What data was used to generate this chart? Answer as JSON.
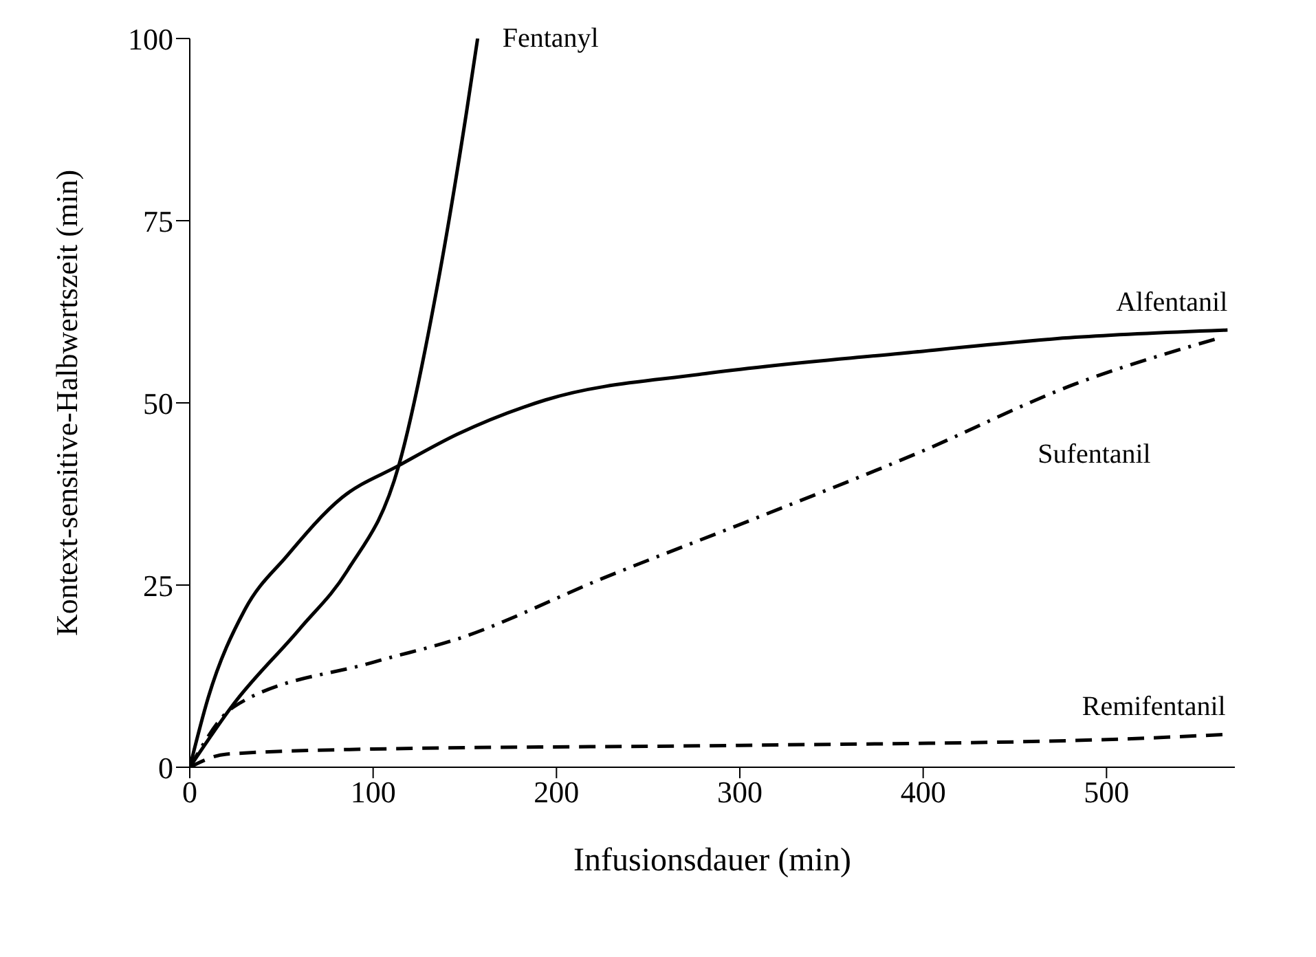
{
  "chart_data": {
    "type": "line",
    "xlabel": "Infusionsdauer (min)",
    "ylabel": "Kontext-sensitive-Halbwertszeit (min)",
    "xlim": [
      0,
      570
    ],
    "ylim": [
      0,
      100
    ],
    "xticks": [
      0,
      100,
      200,
      300,
      400,
      500
    ],
    "yticks": [
      0,
      25,
      50,
      75,
      100
    ],
    "grid": false,
    "legend": false,
    "marker": "none",
    "series": [
      {
        "name": "Fentanyl",
        "color": "#000000",
        "line_style": "solid",
        "x": [
          0,
          24,
          60,
          86,
          114,
          135,
          151,
          157
        ],
        "values": [
          0,
          8.7,
          19,
          27,
          41.4,
          66,
          90,
          100
        ]
      },
      {
        "name": "Alfentanil",
        "color": "#000000",
        "line_style": "solid",
        "x": [
          0,
          10,
          30,
          53,
          83,
          114,
          146,
          194,
          281,
          388,
          483,
          566
        ],
        "values": [
          0,
          9.5,
          21.6,
          29,
          37,
          41.4,
          45.7,
          50.4,
          54,
          56.8,
          59,
          60
        ]
      },
      {
        "name": "Sufentanil",
        "color": "#000000",
        "line_style": "dashdot",
        "x": [
          0,
          24,
          100,
          146,
          226,
          307,
          396,
          483,
          560
        ],
        "values": [
          0,
          8.3,
          14.4,
          17.6,
          26,
          34,
          43,
          52.6,
          58.8
        ]
      },
      {
        "name": "Remifentanil",
        "color": "#000000",
        "line_style": "dashed",
        "x": [
          0,
          20,
          100,
          300,
          500,
          565
        ],
        "values": [
          0,
          1.8,
          2.5,
          3,
          3.8,
          4.5
        ]
      }
    ]
  }
}
